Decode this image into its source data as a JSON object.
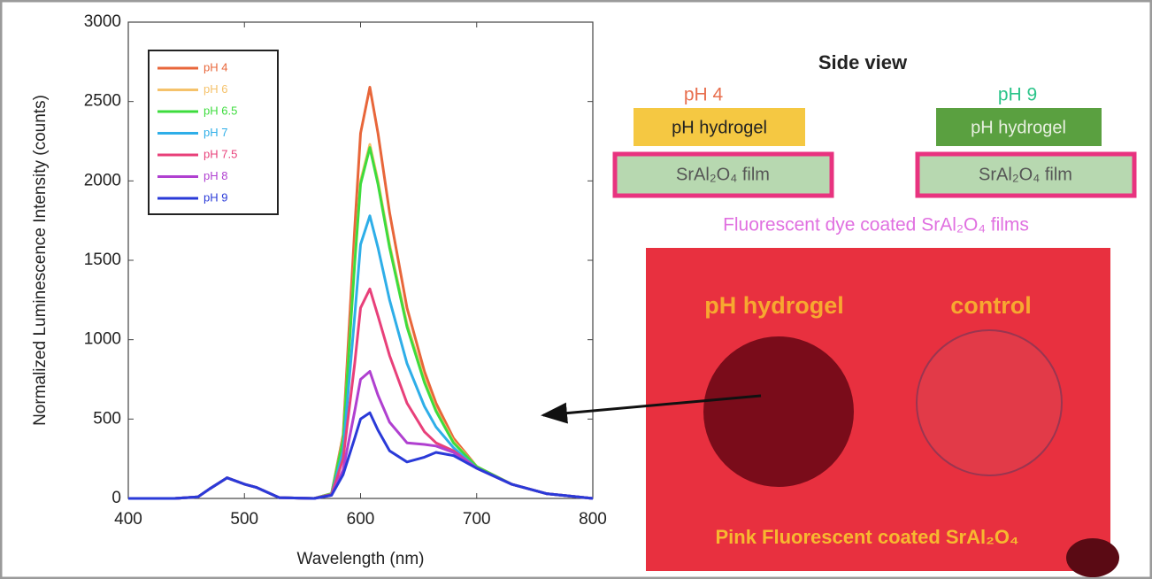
{
  "chart_data": {
    "type": "line",
    "x_label": "Wavelength (nm)",
    "y_label": "Normalized Luminescence Intensity (counts)",
    "x": [
      400,
      440,
      460,
      470,
      485,
      500,
      510,
      530,
      560,
      575,
      585,
      595,
      600,
      608,
      615,
      625,
      640,
      655,
      665,
      680,
      700,
      730,
      760,
      800
    ],
    "series": [
      {
        "name": "pH 4",
        "color": "#e8663a",
        "values": [
          0,
          0,
          10,
          60,
          130,
          90,
          70,
          5,
          0,
          30,
          400,
          1700,
          2300,
          2590,
          2300,
          1800,
          1200,
          800,
          600,
          380,
          200,
          90,
          30,
          0
        ]
      },
      {
        "name": "pH 6",
        "color": "#f5c26b",
        "values": [
          0,
          0,
          10,
          60,
          130,
          90,
          70,
          5,
          0,
          30,
          380,
          1500,
          2000,
          2230,
          2000,
          1600,
          1100,
          750,
          560,
          360,
          200,
          90,
          30,
          0
        ]
      },
      {
        "name": "pH 6.5",
        "color": "#3ddc3d",
        "values": [
          0,
          0,
          10,
          60,
          130,
          90,
          70,
          5,
          0,
          30,
          370,
          1480,
          1980,
          2210,
          1980,
          1580,
          1080,
          730,
          550,
          350,
          200,
          90,
          30,
          0
        ]
      },
      {
        "name": "pH 7",
        "color": "#2eaee8",
        "values": [
          0,
          0,
          10,
          60,
          130,
          90,
          70,
          5,
          0,
          25,
          300,
          1150,
          1600,
          1780,
          1580,
          1250,
          850,
          580,
          450,
          320,
          190,
          90,
          30,
          0
        ]
      },
      {
        "name": "pH 7.5",
        "color": "#e8407a",
        "values": [
          0,
          0,
          10,
          60,
          130,
          90,
          70,
          5,
          0,
          25,
          250,
          850,
          1200,
          1320,
          1150,
          900,
          600,
          420,
          350,
          300,
          190,
          90,
          30,
          0
        ]
      },
      {
        "name": "pH 8",
        "color": "#b040d0",
        "values": [
          0,
          0,
          10,
          60,
          130,
          90,
          70,
          5,
          0,
          20,
          180,
          550,
          750,
          800,
          650,
          480,
          350,
          340,
          330,
          290,
          190,
          90,
          30,
          0
        ]
      },
      {
        "name": "pH 9",
        "color": "#2a3ad8",
        "values": [
          0,
          0,
          10,
          60,
          130,
          90,
          70,
          5,
          0,
          20,
          150,
          380,
          500,
          540,
          430,
          300,
          230,
          260,
          290,
          270,
          190,
          90,
          30,
          0
        ]
      }
    ],
    "xlim": [
      400,
      800
    ],
    "xticks": [
      400,
      500,
      600,
      700,
      800
    ],
    "ylim": [
      0,
      3000
    ],
    "yticks": [
      0,
      500,
      1000,
      1500,
      2000,
      2500,
      3000
    ],
    "grid": false,
    "legend": "upper left"
  },
  "panel": {
    "title": "Side view",
    "left": {
      "ph": "pH 4",
      "hydrogel": "pH hydrogel",
      "film": "SrAl₂O₄ film"
    },
    "right": {
      "ph": "pH 9",
      "hydrogel": "pH hydrogel",
      "film": "SrAl₂O₄ film"
    },
    "caption": "Fluorescent dye coated  SrAl₂O₄ films",
    "photo": {
      "left_label": "pH hydrogel",
      "right_label": "control",
      "bottom_label": "Pink Fluorescent coated SrAl₂O₄"
    }
  }
}
